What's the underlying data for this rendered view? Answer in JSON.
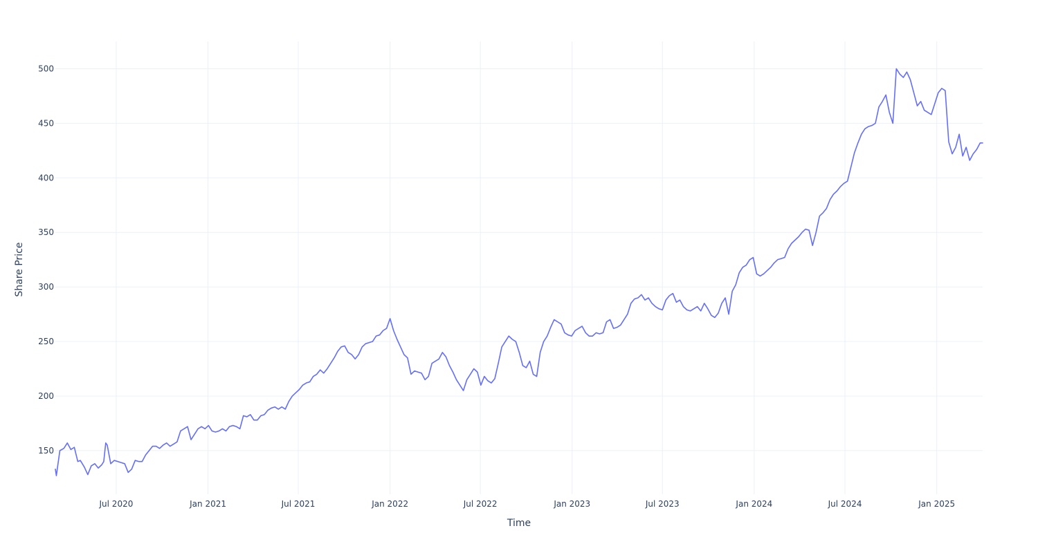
{
  "chart_data": {
    "type": "line",
    "title": "",
    "xlabel": "Time",
    "ylabel": "Share Price",
    "xlim": [
      "2020-03-01",
      "2025-04-03"
    ],
    "ylim": [
      110,
      525
    ],
    "grid": true,
    "legend": "none",
    "colors": {
      "line": "#636efa",
      "grid": "#ebf0f8",
      "text": "#2a3f5f",
      "background": "#ffffff"
    },
    "y_ticks": [
      150,
      200,
      250,
      300,
      350,
      400,
      450,
      500
    ],
    "x_ticks": [
      {
        "date": "2020-07-01",
        "label": "Jul 2020"
      },
      {
        "date": "2021-01-01",
        "label": "Jan 2021"
      },
      {
        "date": "2021-07-01",
        "label": "Jul 2021"
      },
      {
        "date": "2022-01-01",
        "label": "Jan 2022"
      },
      {
        "date": "2022-07-01",
        "label": "Jul 2022"
      },
      {
        "date": "2023-01-01",
        "label": "Jan 2023"
      },
      {
        "date": "2023-07-01",
        "label": "Jul 2023"
      },
      {
        "date": "2024-01-01",
        "label": "Jan 2024"
      },
      {
        "date": "2024-07-01",
        "label": "Jul 2024"
      },
      {
        "date": "2025-01-01",
        "label": "Jan 2025"
      }
    ],
    "series": [
      {
        "x": [
          "2020-03-01",
          "2020-03-03",
          "2020-03-10",
          "2020-03-18",
          "2020-03-25",
          "2020-04-01",
          "2020-04-08",
          "2020-04-15",
          "2020-04-20",
          "2020-04-28",
          "2020-05-05",
          "2020-05-12",
          "2020-05-19",
          "2020-05-26",
          "2020-06-02",
          "2020-06-06",
          "2020-06-10",
          "2020-06-13",
          "2020-06-20",
          "2020-06-27",
          "2020-07-04",
          "2020-07-11",
          "2020-07-18",
          "2020-07-25",
          "2020-08-01",
          "2020-08-08",
          "2020-08-15",
          "2020-08-22",
          "2020-08-29",
          "2020-09-05",
          "2020-09-12",
          "2020-09-19",
          "2020-09-26",
          "2020-10-03",
          "2020-10-10",
          "2020-10-17",
          "2020-10-24",
          "2020-10-31",
          "2020-11-07",
          "2020-11-14",
          "2020-11-21",
          "2020-11-28",
          "2020-12-05",
          "2020-12-12",
          "2020-12-19",
          "2020-12-26",
          "2021-01-02",
          "2021-01-09",
          "2021-01-16",
          "2021-01-23",
          "2021-01-30",
          "2021-02-06",
          "2021-02-13",
          "2021-02-20",
          "2021-02-27",
          "2021-03-06",
          "2021-03-13",
          "2021-03-20",
          "2021-03-27",
          "2021-04-03",
          "2021-04-10",
          "2021-04-17",
          "2021-04-24",
          "2021-05-01",
          "2021-05-08",
          "2021-05-15",
          "2021-05-22",
          "2021-05-29",
          "2021-06-05",
          "2021-06-12",
          "2021-06-19",
          "2021-06-26",
          "2021-07-03",
          "2021-07-10",
          "2021-07-17",
          "2021-07-24",
          "2021-07-31",
          "2021-08-07",
          "2021-08-14",
          "2021-08-21",
          "2021-08-28",
          "2021-09-04",
          "2021-09-11",
          "2021-09-18",
          "2021-09-25",
          "2021-10-02",
          "2021-10-09",
          "2021-10-16",
          "2021-10-23",
          "2021-10-30",
          "2021-11-06",
          "2021-11-13",
          "2021-11-20",
          "2021-11-27",
          "2021-12-04",
          "2021-12-11",
          "2021-12-18",
          "2021-12-25",
          "2022-01-01",
          "2022-01-08",
          "2022-01-15",
          "2022-01-22",
          "2022-01-29",
          "2022-02-05",
          "2022-02-12",
          "2022-02-19",
          "2022-02-26",
          "2022-03-05",
          "2022-03-12",
          "2022-03-19",
          "2022-03-26",
          "2022-04-02",
          "2022-04-09",
          "2022-04-16",
          "2022-04-23",
          "2022-04-30",
          "2022-05-07",
          "2022-05-14",
          "2022-05-21",
          "2022-05-28",
          "2022-06-04",
          "2022-06-11",
          "2022-06-18",
          "2022-06-25",
          "2022-07-02",
          "2022-07-09",
          "2022-07-16",
          "2022-07-23",
          "2022-07-30",
          "2022-08-06",
          "2022-08-13",
          "2022-08-20",
          "2022-08-27",
          "2022-09-03",
          "2022-09-10",
          "2022-09-17",
          "2022-09-24",
          "2022-10-01",
          "2022-10-08",
          "2022-10-15",
          "2022-10-22",
          "2022-10-29",
          "2022-11-05",
          "2022-11-12",
          "2022-11-19",
          "2022-11-26",
          "2022-12-03",
          "2022-12-10",
          "2022-12-17",
          "2022-12-24",
          "2022-12-31",
          "2023-01-07",
          "2023-01-14",
          "2023-01-21",
          "2023-01-28",
          "2023-02-04",
          "2023-02-11",
          "2023-02-18",
          "2023-02-25",
          "2023-03-04",
          "2023-03-11",
          "2023-03-18",
          "2023-03-25",
          "2023-04-01",
          "2023-04-08",
          "2023-04-15",
          "2023-04-22",
          "2023-04-29",
          "2023-05-06",
          "2023-05-13",
          "2023-05-20",
          "2023-05-27",
          "2023-06-03",
          "2023-06-10",
          "2023-06-17",
          "2023-06-24",
          "2023-07-01",
          "2023-07-08",
          "2023-07-15",
          "2023-07-22",
          "2023-07-29",
          "2023-08-05",
          "2023-08-12",
          "2023-08-19",
          "2023-08-26",
          "2023-09-02",
          "2023-09-09",
          "2023-09-16",
          "2023-09-23",
          "2023-09-30",
          "2023-10-07",
          "2023-10-14",
          "2023-10-21",
          "2023-10-28",
          "2023-11-04",
          "2023-11-11",
          "2023-11-18",
          "2023-11-25",
          "2023-12-02",
          "2023-12-09",
          "2023-12-16",
          "2023-12-23",
          "2023-12-30",
          "2024-01-06",
          "2024-01-13",
          "2024-01-20",
          "2024-01-27",
          "2024-02-03",
          "2024-02-10",
          "2024-02-17",
          "2024-02-24",
          "2024-03-02",
          "2024-03-09",
          "2024-03-16",
          "2024-03-23",
          "2024-03-30",
          "2024-04-06",
          "2024-04-13",
          "2024-04-20",
          "2024-04-27",
          "2024-05-04",
          "2024-05-11",
          "2024-05-18",
          "2024-05-25",
          "2024-06-01",
          "2024-06-08",
          "2024-06-15",
          "2024-06-22",
          "2024-06-29",
          "2024-07-06",
          "2024-07-13",
          "2024-07-20",
          "2024-07-27",
          "2024-08-03",
          "2024-08-10",
          "2024-08-17",
          "2024-08-24",
          "2024-08-31",
          "2024-09-07",
          "2024-09-14",
          "2024-09-21",
          "2024-09-28",
          "2024-10-05",
          "2024-10-12",
          "2024-10-19",
          "2024-10-26",
          "2024-11-02",
          "2024-11-09",
          "2024-11-16",
          "2024-11-23",
          "2024-11-30",
          "2024-12-07",
          "2024-12-14",
          "2024-12-21",
          "2024-12-28",
          "2025-01-04",
          "2025-01-11",
          "2025-01-18",
          "2025-01-25",
          "2025-02-01",
          "2025-02-08",
          "2025-02-15",
          "2025-02-22",
          "2025-03-01",
          "2025-03-08",
          "2025-03-15",
          "2025-03-22",
          "2025-03-29",
          "2025-04-03"
        ],
        "y": [
          133,
          127,
          150,
          152,
          157,
          151,
          153,
          140,
          141,
          135,
          128,
          136,
          138,
          134,
          137,
          140,
          157,
          155,
          138,
          141,
          140,
          139,
          138,
          130,
          133,
          141,
          140,
          140,
          146,
          150,
          154,
          154,
          152,
          155,
          157,
          154,
          156,
          158,
          168,
          170,
          172,
          160,
          165,
          170,
          172,
          170,
          173,
          168,
          167,
          168,
          170,
          168,
          172,
          173,
          172,
          170,
          182,
          181,
          183,
          178,
          178,
          182,
          183,
          187,
          189,
          190,
          188,
          190,
          188,
          195,
          200,
          203,
          206,
          210,
          212,
          213,
          218,
          220,
          224,
          221,
          225,
          230,
          235,
          241,
          245,
          246,
          240,
          238,
          234,
          238,
          245,
          248,
          249,
          250,
          255,
          256,
          260,
          262,
          271,
          260,
          252,
          245,
          238,
          235,
          220,
          223,
          222,
          221,
          215,
          218,
          230,
          232,
          234,
          240,
          236,
          228,
          222,
          215,
          210,
          205,
          215,
          220,
          225,
          222,
          210,
          218,
          214,
          212,
          216,
          230,
          245,
          250,
          255,
          252,
          250,
          240,
          228,
          226,
          232,
          220,
          218,
          240,
          250,
          255,
          263,
          270,
          268,
          266,
          258,
          256,
          255,
          260,
          262,
          264,
          258,
          255,
          255,
          258,
          257,
          258,
          268,
          270,
          262,
          263,
          265,
          270,
          275,
          285,
          289,
          290,
          293,
          288,
          290,
          285,
          282,
          280,
          279,
          288,
          292,
          294,
          286,
          288,
          282,
          279,
          278,
          280,
          282,
          278,
          285,
          280,
          274,
          272,
          276,
          285,
          290,
          275,
          296,
          302,
          313,
          318,
          320,
          325,
          327,
          312,
          310,
          312,
          315,
          318,
          322,
          325,
          326,
          327,
          335,
          340,
          343,
          346,
          350,
          353,
          352,
          338,
          350,
          365,
          368,
          372,
          380,
          385,
          388,
          392,
          395,
          397,
          410,
          423,
          432,
          440,
          445,
          447,
          448,
          450,
          465,
          470,
          476,
          460,
          450,
          500,
          495,
          492,
          497,
          490,
          478,
          466,
          470,
          462,
          460,
          458,
          468,
          478,
          482,
          480,
          433,
          422,
          428,
          440,
          420,
          428,
          416,
          422,
          426,
          432,
          432
        ]
      }
    ]
  }
}
